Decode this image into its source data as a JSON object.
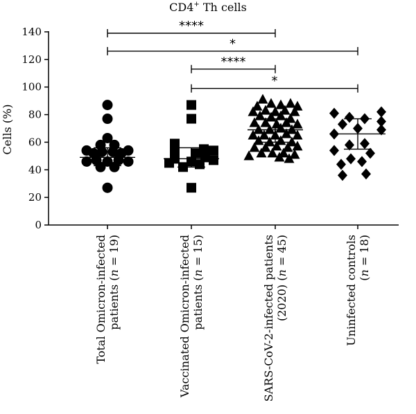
{
  "chart_data": {
    "type": "scatter",
    "title": "CD4",
    "title_sup": "+",
    "title_rest": " Th cells",
    "ylabel": "Cells (%)",
    "ylim": [
      0,
      140
    ],
    "yticks": [
      0,
      20,
      40,
      60,
      80,
      100,
      120,
      140
    ],
    "grid": false,
    "categories": [
      {
        "line1": "Total Omicron-infected",
        "line2_pre": "patients (",
        "line2_n": "n",
        "line2_post": " = 19)"
      },
      {
        "line1": "Vaccinated Omicron-infected",
        "line2_pre": "patients (",
        "line2_n": "n",
        "line2_post": " = 15)"
      },
      {
        "line1": "SARS-CoV-2-infected patients",
        "line2_pre": "(2020) (",
        "line2_n": "n",
        "line2_post": " = 45)"
      },
      {
        "line1": "Uninfected controls",
        "line2_pre": "(",
        "line2_n": "n",
        "line2_post": " = 18)"
      }
    ],
    "series": [
      {
        "marker": "circle",
        "mean": 49,
        "sd_low": 43,
        "sd_high": 56,
        "points": [
          {
            "dx": 0,
            "y": 87
          },
          {
            "dx": 0,
            "y": 77
          },
          {
            "dx": 0,
            "y": 63
          },
          {
            "dx": -10,
            "y": 58
          },
          {
            "dx": 10,
            "y": 58
          },
          {
            "dx": -30,
            "y": 54
          },
          {
            "dx": 30,
            "y": 54
          },
          {
            "dx": -20,
            "y": 52
          },
          {
            "dx": -8,
            "y": 53
          },
          {
            "dx": 8,
            "y": 53
          },
          {
            "dx": 20,
            "y": 52
          },
          {
            "dx": -30,
            "y": 46
          },
          {
            "dx": -16,
            "y": 47
          },
          {
            "dx": 0,
            "y": 46
          },
          {
            "dx": 16,
            "y": 47
          },
          {
            "dx": 30,
            "y": 46
          },
          {
            "dx": -10,
            "y": 42
          },
          {
            "dx": 10,
            "y": 42
          },
          {
            "dx": 0,
            "y": 27
          }
        ]
      },
      {
        "marker": "square",
        "mean": 48,
        "sd_low": 42,
        "sd_high": 56,
        "points": [
          {
            "dx": 0,
            "y": 87
          },
          {
            "dx": 0,
            "y": 77
          },
          {
            "dx": -24,
            "y": 59
          },
          {
            "dx": 18,
            "y": 55
          },
          {
            "dx": -24,
            "y": 54
          },
          {
            "dx": 32,
            "y": 54
          },
          {
            "dx": 6,
            "y": 52
          },
          {
            "dx": -24,
            "y": 48
          },
          {
            "dx": 20,
            "y": 49
          },
          {
            "dx": 32,
            "y": 47
          },
          {
            "dx": -32,
            "y": 45
          },
          {
            "dx": 0,
            "y": 46
          },
          {
            "dx": 12,
            "y": 44
          },
          {
            "dx": -12,
            "y": 42
          },
          {
            "dx": 0,
            "y": 27
          }
        ]
      },
      {
        "marker": "triangle",
        "mean": 69,
        "sd_low": 60,
        "sd_high": 77,
        "points": [
          {
            "dx": -18,
            "y": 91
          },
          {
            "dx": -6,
            "y": 88
          },
          {
            "dx": 8,
            "y": 87
          },
          {
            "dx": 22,
            "y": 88
          },
          {
            "dx": -26,
            "y": 86
          },
          {
            "dx": 32,
            "y": 86
          },
          {
            "dx": -32,
            "y": 82
          },
          {
            "dx": -14,
            "y": 83
          },
          {
            "dx": 0,
            "y": 82
          },
          {
            "dx": 14,
            "y": 83
          },
          {
            "dx": 28,
            "y": 82
          },
          {
            "dx": -22,
            "y": 79
          },
          {
            "dx": -6,
            "y": 78
          },
          {
            "dx": 8,
            "y": 79
          },
          {
            "dx": 22,
            "y": 77
          },
          {
            "dx": -30,
            "y": 74
          },
          {
            "dx": -14,
            "y": 74
          },
          {
            "dx": 2,
            "y": 73
          },
          {
            "dx": 16,
            "y": 74
          },
          {
            "dx": 32,
            "y": 73
          },
          {
            "dx": -24,
            "y": 69
          },
          {
            "dx": -8,
            "y": 69
          },
          {
            "dx": 8,
            "y": 70
          },
          {
            "dx": 24,
            "y": 69
          },
          {
            "dx": -32,
            "y": 65
          },
          {
            "dx": -16,
            "y": 65
          },
          {
            "dx": 0,
            "y": 65
          },
          {
            "dx": 16,
            "y": 66
          },
          {
            "dx": 32,
            "y": 65
          },
          {
            "dx": -24,
            "y": 61
          },
          {
            "dx": -8,
            "y": 60
          },
          {
            "dx": 8,
            "y": 61
          },
          {
            "dx": 24,
            "y": 60
          },
          {
            "dx": -30,
            "y": 56
          },
          {
            "dx": -14,
            "y": 56
          },
          {
            "dx": 2,
            "y": 57
          },
          {
            "dx": 18,
            "y": 56
          },
          {
            "dx": 32,
            "y": 57
          },
          {
            "dx": -20,
            "y": 52
          },
          {
            "dx": -4,
            "y": 52
          },
          {
            "dx": 12,
            "y": 52
          },
          {
            "dx": 28,
            "y": 51
          },
          {
            "dx": -38,
            "y": 50
          },
          {
            "dx": 6,
            "y": 49
          },
          {
            "dx": 20,
            "y": 48
          }
        ]
      },
      {
        "marker": "diamond",
        "mean": 66,
        "sd_low": 55,
        "sd_high": 77,
        "points": [
          {
            "dx": -34,
            "y": 81
          },
          {
            "dx": 34,
            "y": 82
          },
          {
            "dx": -12,
            "y": 78
          },
          {
            "dx": 10,
            "y": 77
          },
          {
            "dx": -22,
            "y": 73
          },
          {
            "dx": 34,
            "y": 75
          },
          {
            "dx": 0,
            "y": 70
          },
          {
            "dx": -34,
            "y": 66
          },
          {
            "dx": 34,
            "y": 69
          },
          {
            "dx": -12,
            "y": 58
          },
          {
            "dx": 10,
            "y": 59
          },
          {
            "dx": -34,
            "y": 54
          },
          {
            "dx": 18,
            "y": 52
          },
          {
            "dx": -10,
            "y": 48
          },
          {
            "dx": 6,
            "y": 46
          },
          {
            "dx": -24,
            "y": 44
          },
          {
            "dx": -22,
            "y": 36
          },
          {
            "dx": 12,
            "y": 37
          }
        ]
      }
    ],
    "comparisons": [
      {
        "from": 0,
        "to": 2,
        "y": 139,
        "label": "****"
      },
      {
        "from": 0,
        "to": 3,
        "y": 126,
        "label": "*"
      },
      {
        "from": 1,
        "to": 2,
        "y": 113,
        "label": "****"
      },
      {
        "from": 1,
        "to": 3,
        "y": 99,
        "label": "*"
      }
    ]
  }
}
